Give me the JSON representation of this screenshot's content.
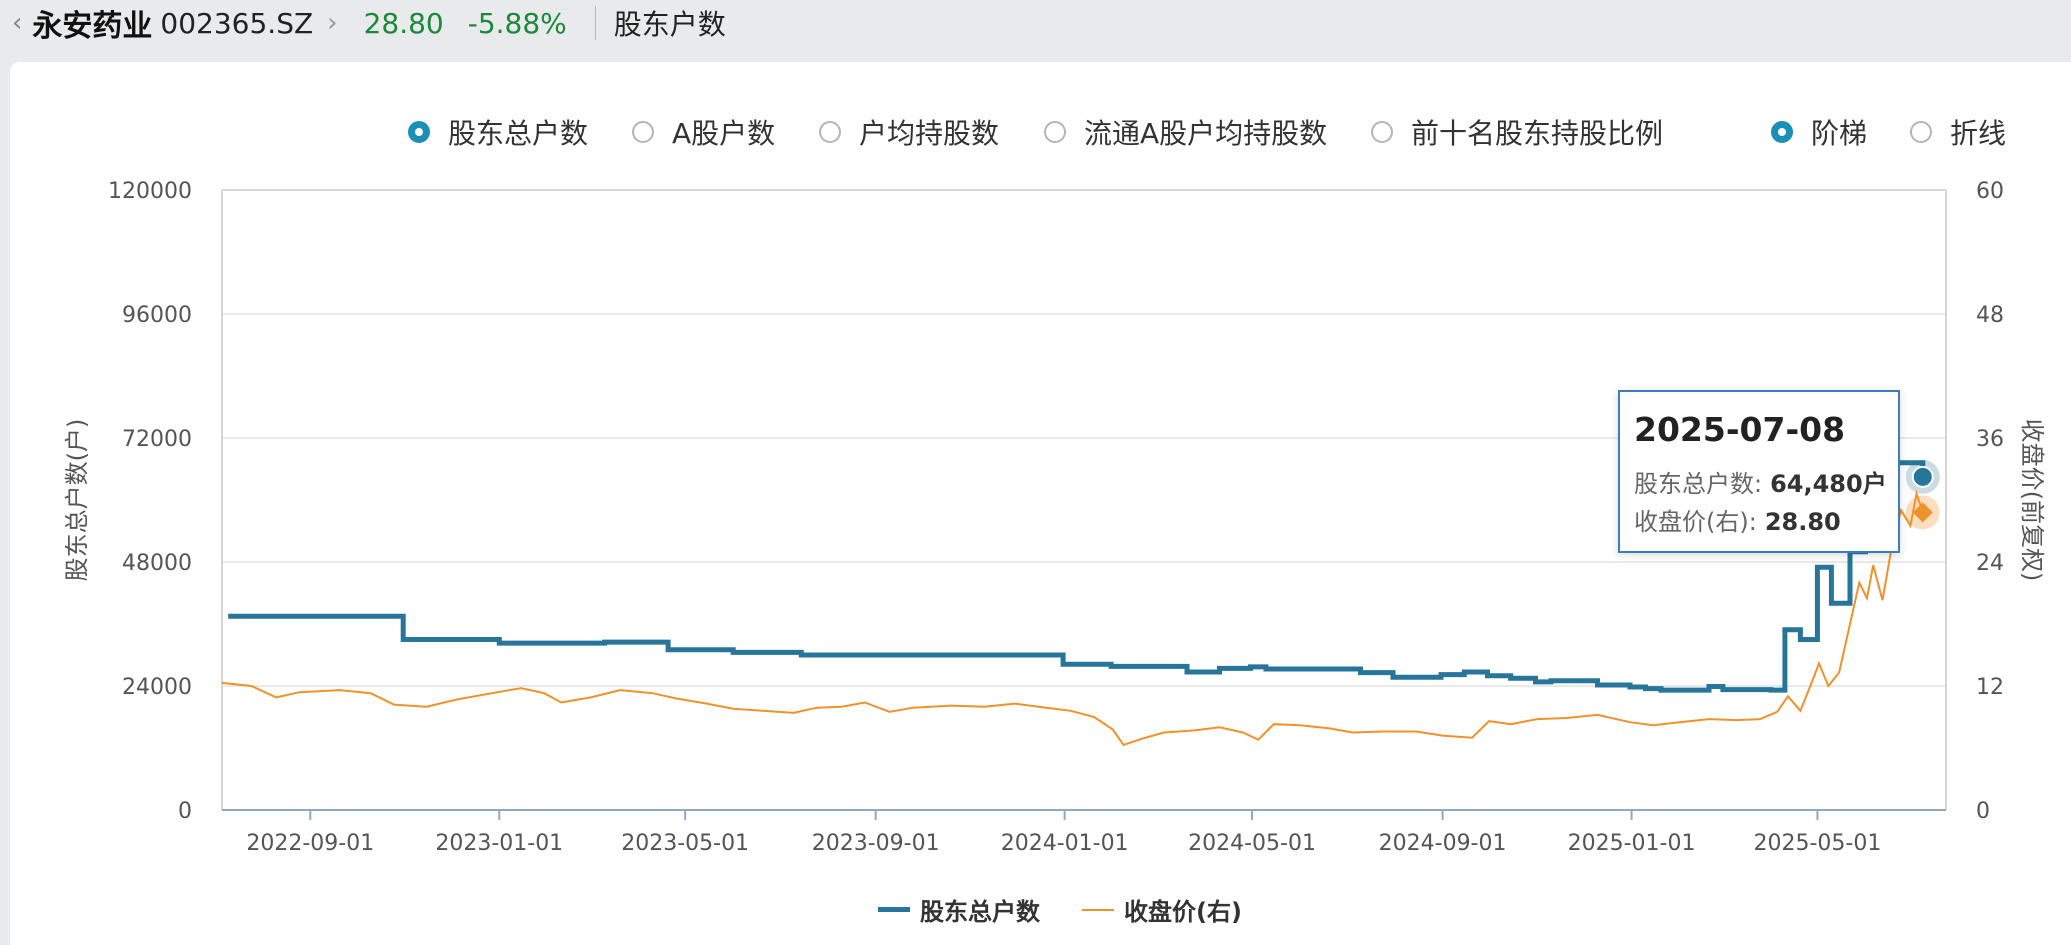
{
  "header": {
    "back_icon": "chevron-left-icon",
    "stock_name": "永安药业",
    "stock_code": "002365.SZ",
    "forward_icon": "chevron-right-icon",
    "price": "28.80",
    "change_pct": "-5.88%",
    "page_title": "股东户数",
    "price_color": "#1a8a3a"
  },
  "metric_options": [
    {
      "label": "股东总户数",
      "selected": true
    },
    {
      "label": "A股户数",
      "selected": false
    },
    {
      "label": "户均持股数",
      "selected": false
    },
    {
      "label": "流通A股户均持股数",
      "selected": false
    },
    {
      "label": "前十名股东持股比例",
      "selected": false
    }
  ],
  "style_options": [
    {
      "label": "阶梯",
      "selected": true
    },
    {
      "label": "折线",
      "selected": false
    }
  ],
  "tooltip": {
    "date": "2025-07-08",
    "holders_label": "股东总户数:",
    "holders_value": "64,480户",
    "close_label": "收盘价(右):",
    "close_value": "28.80"
  },
  "chart_data": {
    "type": "line",
    "ylabel": "股东总户数(户)",
    "y2label": "收盘价(前复权)",
    "ylim": [
      0,
      120000
    ],
    "y2lim": [
      0,
      60
    ],
    "yticks": [
      "0",
      "24000",
      "48000",
      "72000",
      "96000",
      "120000"
    ],
    "y2ticks": [
      "0",
      "12",
      "24",
      "36",
      "48",
      "60"
    ],
    "xticks": [
      "2022-09-01",
      "2023-01-01",
      "2023-05-01",
      "2023-09-01",
      "2024-01-01",
      "2024-05-01",
      "2024-09-01",
      "2025-01-01",
      "2025-05-01"
    ],
    "xrange": [
      "2022-07-06",
      "2025-07-23"
    ],
    "grid": true,
    "legend_position": "bottom",
    "series": [
      {
        "name": "股东总户数",
        "axis": "left",
        "style": "step",
        "color": "#27759a",
        "points": [
          [
            "2022-07-10",
            37500
          ],
          [
            "2022-10-31",
            33000
          ],
          [
            "2023-01-01",
            32300
          ],
          [
            "2023-03-10",
            32500
          ],
          [
            "2023-04-20",
            31000
          ],
          [
            "2023-06-01",
            30500
          ],
          [
            "2023-07-15",
            30000
          ],
          [
            "2023-12-31",
            28200
          ],
          [
            "2024-01-31",
            27800
          ],
          [
            "2024-03-20",
            26700
          ],
          [
            "2024-04-10",
            27400
          ],
          [
            "2024-04-30",
            27700
          ],
          [
            "2024-05-10",
            27300
          ],
          [
            "2024-07-10",
            26600
          ],
          [
            "2024-07-31",
            25700
          ],
          [
            "2024-08-31",
            26200
          ],
          [
            "2024-09-15",
            26700
          ],
          [
            "2024-09-30",
            26000
          ],
          [
            "2024-10-15",
            25500
          ],
          [
            "2024-10-31",
            24800
          ],
          [
            "2024-11-10",
            25000
          ],
          [
            "2024-12-10",
            24200
          ],
          [
            "2024-12-31",
            23800
          ],
          [
            "2025-01-10",
            23500
          ],
          [
            "2025-01-20",
            23200
          ],
          [
            "2025-02-20",
            23900
          ],
          [
            "2025-03-01",
            23300
          ],
          [
            "2025-04-01",
            23200
          ],
          [
            "2025-04-10",
            34900
          ],
          [
            "2025-04-20",
            33000
          ],
          [
            "2025-05-01",
            47000
          ],
          [
            "2025-05-10",
            40000
          ],
          [
            "2025-05-22",
            50000
          ],
          [
            "2025-06-01",
            72000
          ],
          [
            "2025-06-10",
            60000
          ],
          [
            "2025-06-20",
            67200
          ],
          [
            "2025-07-08",
            64480
          ]
        ]
      },
      {
        "name": "收盘价(右)",
        "axis": "right",
        "style": "line",
        "color": "#f0922b",
        "points": [
          [
            "2022-07-06",
            12.3
          ],
          [
            "2022-07-25",
            12.0
          ],
          [
            "2022-08-10",
            10.9
          ],
          [
            "2022-08-25",
            11.4
          ],
          [
            "2022-09-20",
            11.6
          ],
          [
            "2022-10-10",
            11.3
          ],
          [
            "2022-10-25",
            10.2
          ],
          [
            "2022-11-15",
            10.0
          ],
          [
            "2022-12-05",
            10.7
          ],
          [
            "2022-12-31",
            11.4
          ],
          [
            "2023-01-15",
            11.8
          ],
          [
            "2023-01-30",
            11.3
          ],
          [
            "2023-02-10",
            10.4
          ],
          [
            "2023-03-01",
            10.9
          ],
          [
            "2023-03-20",
            11.6
          ],
          [
            "2023-04-10",
            11.3
          ],
          [
            "2023-04-25",
            10.8
          ],
          [
            "2023-05-15",
            10.3
          ],
          [
            "2023-06-01",
            9.8
          ],
          [
            "2023-06-20",
            9.6
          ],
          [
            "2023-07-10",
            9.4
          ],
          [
            "2023-07-25",
            9.9
          ],
          [
            "2023-08-10",
            10.0
          ],
          [
            "2023-08-25",
            10.4
          ],
          [
            "2023-09-10",
            9.5
          ],
          [
            "2023-09-25",
            9.9
          ],
          [
            "2023-10-20",
            10.1
          ],
          [
            "2023-11-10",
            10.0
          ],
          [
            "2023-11-30",
            10.3
          ],
          [
            "2023-12-20",
            9.9
          ],
          [
            "2024-01-05",
            9.6
          ],
          [
            "2024-01-20",
            9.0
          ],
          [
            "2024-02-01",
            7.8
          ],
          [
            "2024-02-08",
            6.3
          ],
          [
            "2024-02-20",
            6.9
          ],
          [
            "2024-03-05",
            7.5
          ],
          [
            "2024-03-25",
            7.7
          ],
          [
            "2024-04-10",
            8.0
          ],
          [
            "2024-04-25",
            7.5
          ],
          [
            "2024-05-05",
            6.8
          ],
          [
            "2024-05-15",
            8.3
          ],
          [
            "2024-06-01",
            8.2
          ],
          [
            "2024-06-20",
            7.9
          ],
          [
            "2024-07-05",
            7.5
          ],
          [
            "2024-07-25",
            7.6
          ],
          [
            "2024-08-15",
            7.6
          ],
          [
            "2024-09-01",
            7.2
          ],
          [
            "2024-09-20",
            7.0
          ],
          [
            "2024-10-01",
            8.6
          ],
          [
            "2024-10-15",
            8.3
          ],
          [
            "2024-11-01",
            8.8
          ],
          [
            "2024-11-20",
            8.9
          ],
          [
            "2024-12-10",
            9.2
          ],
          [
            "2024-12-31",
            8.5
          ],
          [
            "2025-01-15",
            8.2
          ],
          [
            "2025-02-01",
            8.5
          ],
          [
            "2025-02-20",
            8.8
          ],
          [
            "2025-03-10",
            8.7
          ],
          [
            "2025-03-25",
            8.8
          ],
          [
            "2025-04-05",
            9.5
          ],
          [
            "2025-04-12",
            11.0
          ],
          [
            "2025-04-20",
            9.6
          ],
          [
            "2025-04-28",
            12.6
          ],
          [
            "2025-05-02",
            14.2
          ],
          [
            "2025-05-08",
            12.0
          ],
          [
            "2025-05-15",
            13.3
          ],
          [
            "2025-05-22",
            18.0
          ],
          [
            "2025-05-28",
            22.0
          ],
          [
            "2025-06-02",
            20.5
          ],
          [
            "2025-06-06",
            23.7
          ],
          [
            "2025-06-12",
            20.3
          ],
          [
            "2025-06-18",
            25.5
          ],
          [
            "2025-06-24",
            29.0
          ],
          [
            "2025-06-30",
            27.5
          ],
          [
            "2025-07-04",
            30.6
          ],
          [
            "2025-07-08",
            28.8
          ]
        ]
      }
    ]
  }
}
